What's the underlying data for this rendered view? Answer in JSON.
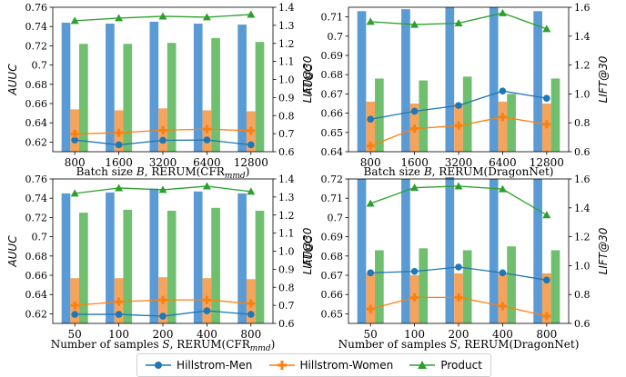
{
  "legend": [
    {
      "name": "Hillstrom-Men",
      "color": "#1f77b4",
      "marker": "circle"
    },
    {
      "name": "Hillstrom-Women",
      "color": "#ff7f0e",
      "marker": "plus"
    },
    {
      "name": "Product",
      "color": "#2ca02c",
      "marker": "triangle"
    }
  ],
  "chart_data": [
    {
      "type": "bar",
      "xlabel_prefix": "Batch size ",
      "xlabel_var": "B",
      "xlabel_suffix": ", RERUM(CFR",
      "xlabel_sub": "mmd",
      "xlabel_end": ")",
      "ylabel": "AUUC",
      "y2label": "LIFT@30",
      "categories": [
        "800",
        "1600",
        "3200",
        "6400",
        "12800"
      ],
      "ylim": [
        0.61,
        0.76
      ],
      "yticks": [
        "0.62",
        "0.64",
        "0.66",
        "0.68",
        "0.7",
        "0.72",
        "0.74",
        "0.76"
      ],
      "y2lim": [
        0.6,
        1.4
      ],
      "y2ticks": [
        "0.6",
        "0.7",
        "0.8",
        "0.9",
        "1.0",
        "1.1",
        "1.2",
        "1.3",
        "1.4"
      ],
      "bars": [
        {
          "name": "Hillstrom-Men",
          "color": "#5b9bd5",
          "values": [
            0.744,
            0.743,
            0.745,
            0.743,
            0.742
          ]
        },
        {
          "name": "Hillstrom-Women",
          "color": "#f6a35c",
          "values": [
            0.654,
            0.653,
            0.655,
            0.653,
            0.652
          ]
        },
        {
          "name": "Product",
          "color": "#6fbf6f",
          "values": [
            0.722,
            0.722,
            0.723,
            0.728,
            0.724
          ]
        }
      ],
      "lines": [
        {
          "name": "Hillstrom-Men",
          "color": "#1f77b4",
          "marker": "circle",
          "values": [
            0.665,
            0.638,
            0.663,
            0.665,
            0.638
          ]
        },
        {
          "name": "Hillstrom-Women",
          "color": "#ff7f0e",
          "marker": "plus",
          "values": [
            0.698,
            0.705,
            0.719,
            0.725,
            0.716
          ]
        },
        {
          "name": "Product",
          "color": "#2ca02c",
          "marker": "triangle",
          "values": [
            1.325,
            1.34,
            1.35,
            1.345,
            1.36
          ]
        }
      ]
    },
    {
      "type": "bar",
      "xlabel_prefix": "Batch size ",
      "xlabel_var": "B",
      "xlabel_suffix": ", RERUM(DragonNet)",
      "xlabel_sub": "",
      "xlabel_end": "",
      "ylabel": "AUUC",
      "y2label": "LIFT@30",
      "categories": [
        "800",
        "1600",
        "3200",
        "6400",
        "12800"
      ],
      "ylim": [
        0.64,
        0.715
      ],
      "yticks": [
        "0.64",
        "0.65",
        "0.66",
        "0.67",
        "0.68",
        "0.69",
        "0.7",
        "0.71"
      ],
      "y2lim": [
        0.6,
        1.6
      ],
      "y2ticks": [
        "0.6",
        "0.8",
        "1.0",
        "1.2",
        "1.4",
        "1.6"
      ],
      "bars": [
        {
          "name": "Hillstrom-Men",
          "color": "#5b9bd5",
          "values": [
            0.713,
            0.714,
            0.715,
            0.715,
            0.713
          ]
        },
        {
          "name": "Hillstrom-Women",
          "color": "#f6a35c",
          "values": [
            0.666,
            0.665,
            0.665,
            0.666,
            0.665
          ]
        },
        {
          "name": "Product",
          "color": "#6fbf6f",
          "values": [
            0.678,
            0.677,
            0.679,
            0.67,
            0.678
          ]
        }
      ],
      "lines": [
        {
          "name": "Hillstrom-Men",
          "color": "#1f77b4",
          "marker": "circle",
          "values": [
            0.825,
            0.88,
            0.92,
            1.02,
            0.97
          ]
        },
        {
          "name": "Hillstrom-Women",
          "color": "#ff7f0e",
          "marker": "plus",
          "values": [
            0.64,
            0.76,
            0.78,
            0.84,
            0.79
          ]
        },
        {
          "name": "Product",
          "color": "#2ca02c",
          "marker": "triangle",
          "values": [
            1.5,
            1.48,
            1.49,
            1.56,
            1.45
          ]
        }
      ]
    },
    {
      "type": "bar",
      "xlabel_prefix": "Number of samples ",
      "xlabel_var": "S",
      "xlabel_suffix": ", RERUM(CFR",
      "xlabel_sub": "mmd",
      "xlabel_end": ")",
      "ylabel": "AUUC",
      "y2label": "LIFT@30",
      "categories": [
        "50",
        "100",
        "200",
        "400",
        "800"
      ],
      "ylim": [
        0.61,
        0.76
      ],
      "yticks": [
        "0.62",
        "0.64",
        "0.66",
        "0.68",
        "0.7",
        "0.72",
        "0.74",
        "0.76"
      ],
      "y2lim": [
        0.6,
        1.4
      ],
      "y2ticks": [
        "0.6",
        "0.7",
        "0.8",
        "0.9",
        "1.0",
        "1.1",
        "1.2",
        "1.3",
        "1.4"
      ],
      "bars": [
        {
          "name": "Hillstrom-Men",
          "color": "#5b9bd5",
          "values": [
            0.745,
            0.746,
            0.75,
            0.747,
            0.745
          ]
        },
        {
          "name": "Hillstrom-Women",
          "color": "#f6a35c",
          "values": [
            0.657,
            0.657,
            0.658,
            0.657,
            0.656
          ]
        },
        {
          "name": "Product",
          "color": "#6fbf6f",
          "values": [
            0.725,
            0.728,
            0.727,
            0.73,
            0.727
          ]
        }
      ],
      "lines": [
        {
          "name": "Hillstrom-Men",
          "color": "#1f77b4",
          "marker": "circle",
          "values": [
            0.65,
            0.65,
            0.64,
            0.67,
            0.65
          ]
        },
        {
          "name": "Hillstrom-Women",
          "color": "#ff7f0e",
          "marker": "plus",
          "values": [
            0.7,
            0.72,
            0.73,
            0.73,
            0.71
          ]
        },
        {
          "name": "Product",
          "color": "#2ca02c",
          "marker": "triangle",
          "values": [
            1.32,
            1.35,
            1.34,
            1.36,
            1.33
          ]
        }
      ]
    },
    {
      "type": "bar",
      "xlabel_prefix": "Number of samples ",
      "xlabel_var": "S",
      "xlabel_suffix": ", RERUM(DragonNet)",
      "xlabel_sub": "",
      "xlabel_end": "",
      "ylabel": "AUUC",
      "y2label": "LIFT@30",
      "categories": [
        "50",
        "100",
        "200",
        "400",
        "800"
      ],
      "ylim": [
        0.645,
        0.72
      ],
      "yticks": [
        "0.65",
        "0.66",
        "0.67",
        "0.68",
        "0.69",
        "0.7",
        "0.71",
        "0.72"
      ],
      "y2lim": [
        0.6,
        1.6
      ],
      "y2ticks": [
        "0.6",
        "0.8",
        "1.0",
        "1.2",
        "1.4",
        "1.6"
      ],
      "bars": [
        {
          "name": "Hillstrom-Men",
          "color": "#5b9bd5",
          "values": [
            0.72,
            0.72,
            0.721,
            0.72,
            0.72
          ]
        },
        {
          "name": "Hillstrom-Women",
          "color": "#f6a35c",
          "values": [
            0.671,
            0.67,
            0.671,
            0.671,
            0.671
          ]
        },
        {
          "name": "Product",
          "color": "#6fbf6f",
          "values": [
            0.683,
            0.684,
            0.683,
            0.685,
            0.683
          ]
        }
      ],
      "lines": [
        {
          "name": "Hillstrom-Men",
          "color": "#1f77b4",
          "marker": "circle",
          "values": [
            0.95,
            0.96,
            0.99,
            0.95,
            0.9
          ]
        },
        {
          "name": "Hillstrom-Women",
          "color": "#ff7f0e",
          "marker": "plus",
          "values": [
            0.7,
            0.78,
            0.78,
            0.72,
            0.65
          ]
        },
        {
          "name": "Product",
          "color": "#2ca02c",
          "marker": "triangle",
          "values": [
            1.43,
            1.54,
            1.55,
            1.53,
            1.35
          ]
        }
      ]
    }
  ]
}
